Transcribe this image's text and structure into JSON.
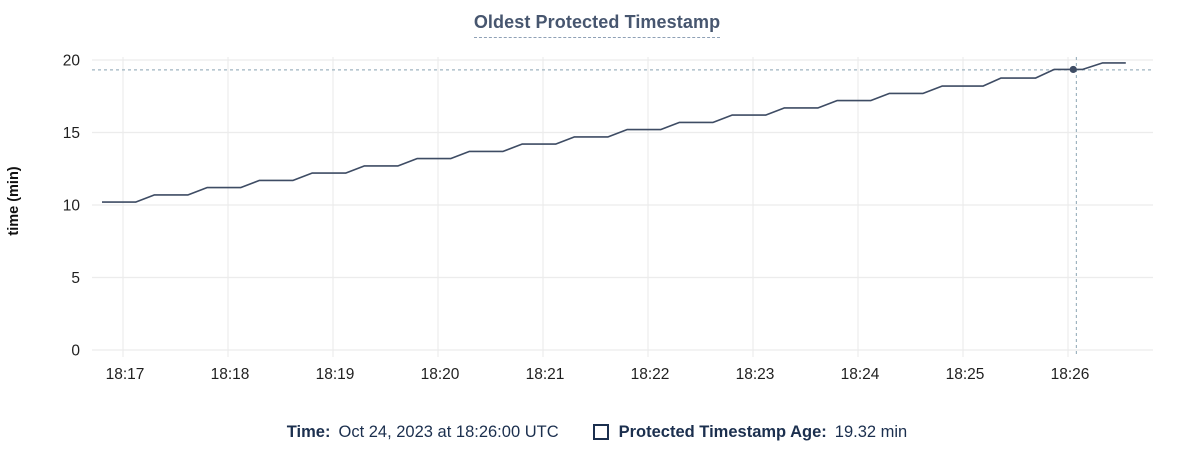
{
  "title": "Oldest Protected Timestamp",
  "y_axis_label": "time (min)",
  "legend": {
    "time_label": "Time:",
    "time_value": "Oct 24, 2023 at 18:26:00 UTC",
    "series_label": "Protected Timestamp Age:",
    "series_value": "19.32 min"
  },
  "colors": {
    "line": "#3e4c64",
    "grid": "#ececec",
    "crosshair": "#9fb4c0",
    "tick_text": "#1f1f1f",
    "title_text": "#47566f",
    "legend_text": "#1b2f4e"
  },
  "chart_data": {
    "type": "line",
    "title": "Oldest Protected Timestamp",
    "ylabel": "time (min)",
    "ylim": [
      0,
      20
    ],
    "yticks": [
      0,
      5,
      10,
      15,
      20
    ],
    "xticks": [
      "18:17",
      "18:18",
      "18:19",
      "18:20",
      "18:21",
      "18:22",
      "18:23",
      "18:24",
      "18:25",
      "18:26"
    ],
    "x_unit": "minutes after 18:17",
    "grid": true,
    "legend_position": "bottom",
    "series": [
      {
        "name": "Protected Timestamp Age",
        "unit": "min",
        "points": [
          [
            -0.2,
            10.2
          ],
          [
            0.12,
            10.2
          ],
          [
            0.3,
            10.7
          ],
          [
            0.62,
            10.7
          ],
          [
            0.8,
            11.2
          ],
          [
            1.12,
            11.2
          ],
          [
            1.3,
            11.7
          ],
          [
            1.62,
            11.7
          ],
          [
            1.8,
            12.2
          ],
          [
            2.12,
            12.2
          ],
          [
            2.3,
            12.7
          ],
          [
            2.62,
            12.7
          ],
          [
            2.8,
            13.2
          ],
          [
            3.12,
            13.2
          ],
          [
            3.3,
            13.7
          ],
          [
            3.62,
            13.7
          ],
          [
            3.8,
            14.2
          ],
          [
            4.12,
            14.2
          ],
          [
            4.3,
            14.7
          ],
          [
            4.62,
            14.7
          ],
          [
            4.8,
            15.2
          ],
          [
            5.12,
            15.2
          ],
          [
            5.3,
            15.7
          ],
          [
            5.62,
            15.7
          ],
          [
            5.8,
            16.2
          ],
          [
            6.12,
            16.2
          ],
          [
            6.3,
            16.7
          ],
          [
            6.62,
            16.7
          ],
          [
            6.8,
            17.2
          ],
          [
            7.12,
            17.2
          ],
          [
            7.3,
            17.7
          ],
          [
            7.62,
            17.7
          ],
          [
            7.8,
            18.2
          ],
          [
            8.19,
            18.2
          ],
          [
            8.36,
            18.75
          ],
          [
            8.69,
            18.75
          ],
          [
            8.87,
            19.35
          ],
          [
            9.14,
            19.35
          ],
          [
            9.33,
            19.8
          ],
          [
            9.55,
            19.8
          ]
        ]
      }
    ],
    "hover": {
      "t": 9.08,
      "value": 19.32,
      "dot_t": 9.05,
      "dot_v": 19.35,
      "time_label": "18:26:00",
      "value_label": "19.32 min"
    }
  }
}
